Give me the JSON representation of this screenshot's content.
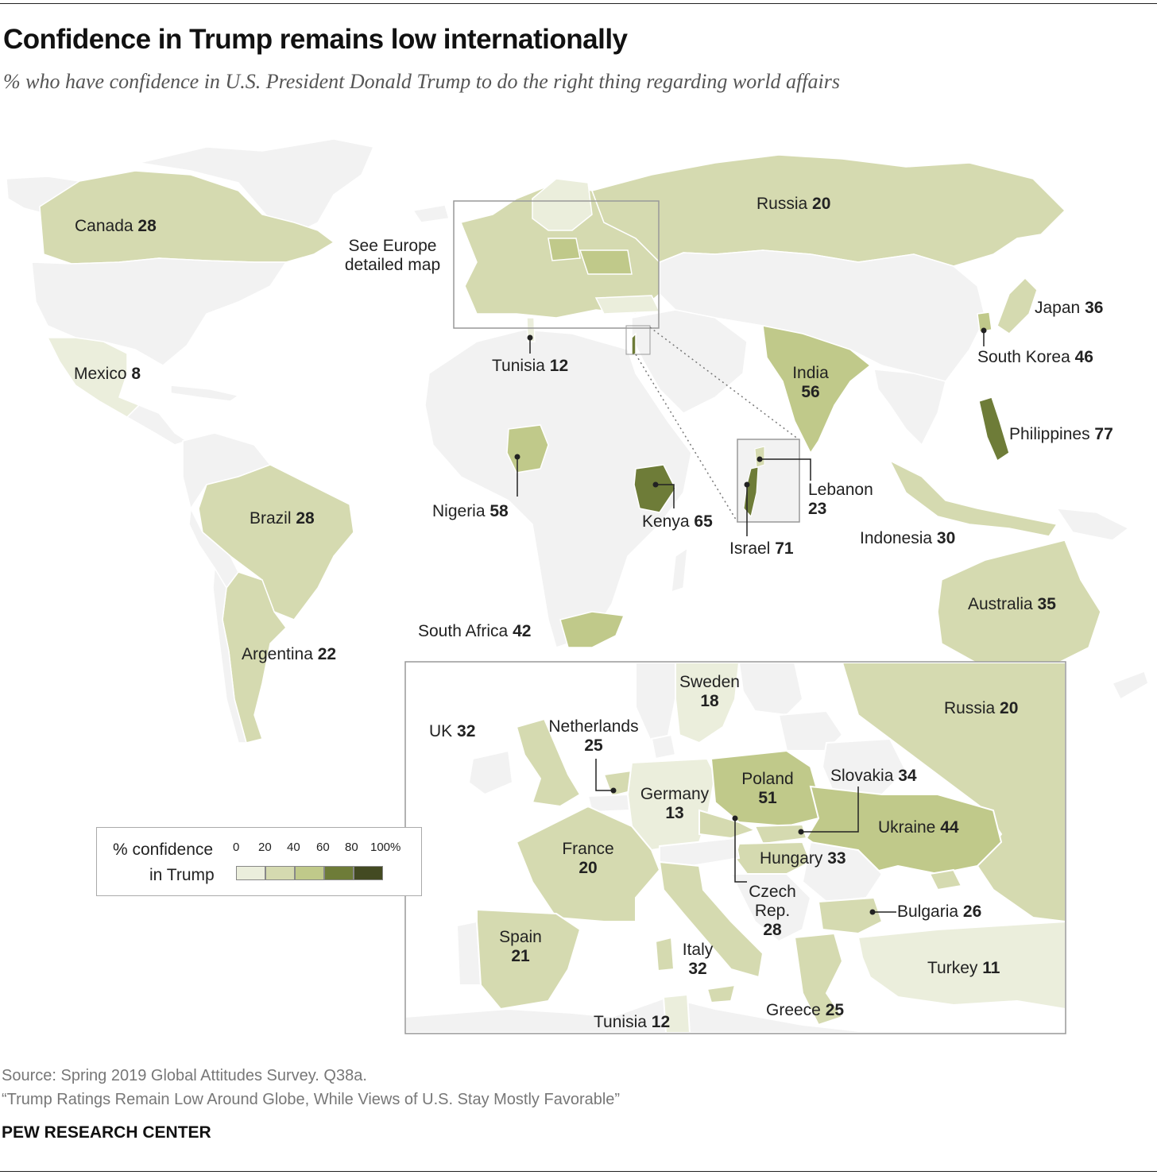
{
  "header": {
    "title": "Confidence in Trump remains low internationally",
    "subtitle": "% who have confidence in U.S. President Donald Trump to do the right thing regarding world affairs"
  },
  "world_labels": {
    "canada": {
      "name": "Canada",
      "value": "28"
    },
    "russia": {
      "name": "Russia",
      "value": "20"
    },
    "europe_note": "See Europe\ndetailed map",
    "mexico": {
      "name": "Mexico",
      "value": "8"
    },
    "tunisia": {
      "name": "Tunisia",
      "value": "12"
    },
    "japan": {
      "name": "Japan",
      "value": "36"
    },
    "south_korea": {
      "name": "South Korea",
      "value": "46"
    },
    "india": {
      "name": "India",
      "value": "56"
    },
    "philippines": {
      "name": "Philippines",
      "value": "77"
    },
    "nigeria": {
      "name": "Nigeria",
      "value": "58"
    },
    "kenya": {
      "name": "Kenya",
      "value": "65"
    },
    "lebanon": {
      "name": "Lebanon",
      "value": "23"
    },
    "israel": {
      "name": "Israel",
      "value": "71"
    },
    "indonesia": {
      "name": "Indonesia",
      "value": "30"
    },
    "brazil": {
      "name": "Brazil",
      "value": "28"
    },
    "argentina": {
      "name": "Argentina",
      "value": "22"
    },
    "south_africa": {
      "name": "South Africa",
      "value": "42"
    },
    "australia": {
      "name": "Australia",
      "value": "35"
    }
  },
  "europe_labels": {
    "sweden": {
      "name": "Sweden",
      "value": "18"
    },
    "russia": {
      "name": "Russia",
      "value": "20"
    },
    "uk": {
      "name": "UK",
      "value": "32"
    },
    "netherlands": {
      "name": "Netherlands",
      "value": "25"
    },
    "poland": {
      "name": "Poland",
      "value": "51"
    },
    "slovakia": {
      "name": "Slovakia",
      "value": "34"
    },
    "germany": {
      "name": "Germany",
      "value": "13"
    },
    "ukraine": {
      "name": "Ukraine",
      "value": "44"
    },
    "france": {
      "name": "France",
      "value": "20"
    },
    "hungary": {
      "name": "Hungary",
      "value": "33"
    },
    "czech": {
      "name1": "Czech",
      "name2": "Rep.",
      "value": "28"
    },
    "bulgaria": {
      "name": "Bulgaria",
      "value": "26"
    },
    "spain": {
      "name": "Spain",
      "value": "21"
    },
    "italy": {
      "name": "Italy",
      "value": "32"
    },
    "turkey": {
      "name": "Turkey",
      "value": "11"
    },
    "greece": {
      "name": "Greece",
      "value": "25"
    },
    "tunisia": {
      "name": "Tunisia",
      "value": "12"
    }
  },
  "legend": {
    "title_line1": "% confidence",
    "title_line2": "in Trump",
    "ticks": [
      "0",
      "20",
      "40",
      "60",
      "80",
      "100%"
    ],
    "colors": [
      "#ebeedc",
      "#d5dab0",
      "#c0c98a",
      "#6e7c38",
      "#434a22"
    ]
  },
  "colors": {
    "no_data": "#f2f2f2",
    "bin_0_20": "#ebeedc",
    "bin_20_40": "#d5dab0",
    "bin_40_60": "#c0c98a",
    "bin_60_80": "#6e7c38",
    "bin_80_100": "#434a22",
    "ocean": "#ffffff"
  },
  "footer": {
    "source": "Source: Spring 2019 Global Attitudes Survey. Q38a.",
    "report": "“Trump Ratings Remain Low Around Globe, While Views of U.S. Stay Mostly Favorable”",
    "brand": "PEW RESEARCH CENTER"
  }
}
